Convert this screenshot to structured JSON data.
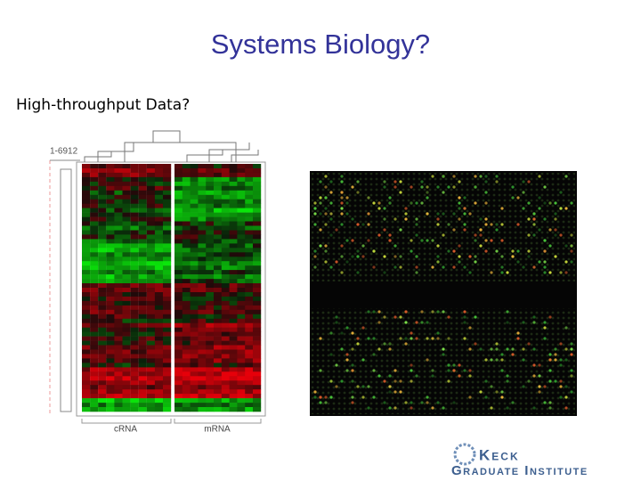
{
  "slide": {
    "title": "Systems Biology?",
    "subtitle": "High-throughput Data?"
  },
  "heatmap": {
    "row_range_label": "1-6912",
    "column_groups": [
      "cRNA",
      "mRNA"
    ]
  },
  "logo": {
    "line1": "Keck",
    "line2": "Graduate Institute"
  }
}
